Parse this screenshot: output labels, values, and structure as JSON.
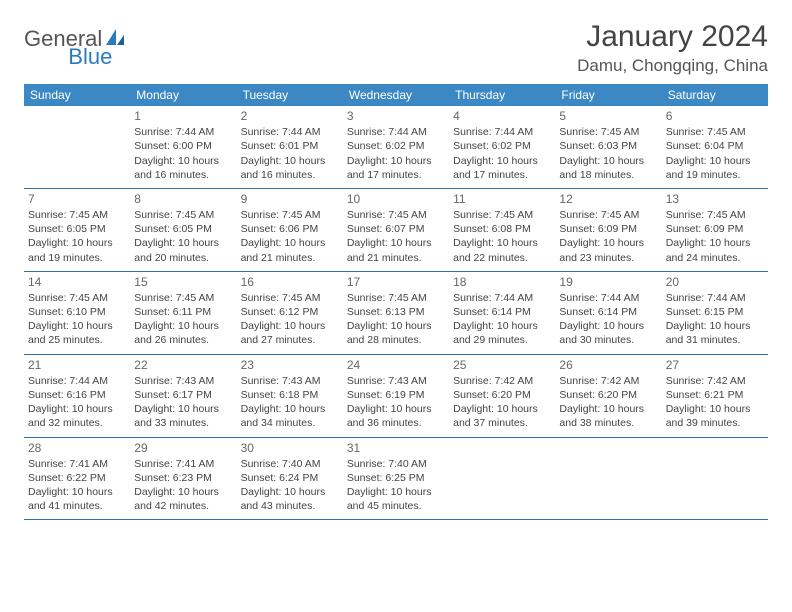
{
  "logo": {
    "text1": "General",
    "text2": "Blue"
  },
  "title": "January 2024",
  "location": "Damu, Chongqing, China",
  "weekdays": [
    "Sunday",
    "Monday",
    "Tuesday",
    "Wednesday",
    "Thursday",
    "Friday",
    "Saturday"
  ],
  "colors": {
    "header_bg": "#3b88c4",
    "header_text": "#ffffff",
    "border": "#2f6fa3",
    "body_text": "#444444",
    "daynum": "#666666",
    "logo_gray": "#555555",
    "logo_blue": "#2b7bbf"
  },
  "days": [
    {
      "n": "",
      "sr": "",
      "ss": "",
      "d1": "",
      "d2": ""
    },
    {
      "n": "1",
      "sr": "Sunrise: 7:44 AM",
      "ss": "Sunset: 6:00 PM",
      "d1": "Daylight: 10 hours",
      "d2": "and 16 minutes."
    },
    {
      "n": "2",
      "sr": "Sunrise: 7:44 AM",
      "ss": "Sunset: 6:01 PM",
      "d1": "Daylight: 10 hours",
      "d2": "and 16 minutes."
    },
    {
      "n": "3",
      "sr": "Sunrise: 7:44 AM",
      "ss": "Sunset: 6:02 PM",
      "d1": "Daylight: 10 hours",
      "d2": "and 17 minutes."
    },
    {
      "n": "4",
      "sr": "Sunrise: 7:44 AM",
      "ss": "Sunset: 6:02 PM",
      "d1": "Daylight: 10 hours",
      "d2": "and 17 minutes."
    },
    {
      "n": "5",
      "sr": "Sunrise: 7:45 AM",
      "ss": "Sunset: 6:03 PM",
      "d1": "Daylight: 10 hours",
      "d2": "and 18 minutes."
    },
    {
      "n": "6",
      "sr": "Sunrise: 7:45 AM",
      "ss": "Sunset: 6:04 PM",
      "d1": "Daylight: 10 hours",
      "d2": "and 19 minutes."
    },
    {
      "n": "7",
      "sr": "Sunrise: 7:45 AM",
      "ss": "Sunset: 6:05 PM",
      "d1": "Daylight: 10 hours",
      "d2": "and 19 minutes."
    },
    {
      "n": "8",
      "sr": "Sunrise: 7:45 AM",
      "ss": "Sunset: 6:05 PM",
      "d1": "Daylight: 10 hours",
      "d2": "and 20 minutes."
    },
    {
      "n": "9",
      "sr": "Sunrise: 7:45 AM",
      "ss": "Sunset: 6:06 PM",
      "d1": "Daylight: 10 hours",
      "d2": "and 21 minutes."
    },
    {
      "n": "10",
      "sr": "Sunrise: 7:45 AM",
      "ss": "Sunset: 6:07 PM",
      "d1": "Daylight: 10 hours",
      "d2": "and 21 minutes."
    },
    {
      "n": "11",
      "sr": "Sunrise: 7:45 AM",
      "ss": "Sunset: 6:08 PM",
      "d1": "Daylight: 10 hours",
      "d2": "and 22 minutes."
    },
    {
      "n": "12",
      "sr": "Sunrise: 7:45 AM",
      "ss": "Sunset: 6:09 PM",
      "d1": "Daylight: 10 hours",
      "d2": "and 23 minutes."
    },
    {
      "n": "13",
      "sr": "Sunrise: 7:45 AM",
      "ss": "Sunset: 6:09 PM",
      "d1": "Daylight: 10 hours",
      "d2": "and 24 minutes."
    },
    {
      "n": "14",
      "sr": "Sunrise: 7:45 AM",
      "ss": "Sunset: 6:10 PM",
      "d1": "Daylight: 10 hours",
      "d2": "and 25 minutes."
    },
    {
      "n": "15",
      "sr": "Sunrise: 7:45 AM",
      "ss": "Sunset: 6:11 PM",
      "d1": "Daylight: 10 hours",
      "d2": "and 26 minutes."
    },
    {
      "n": "16",
      "sr": "Sunrise: 7:45 AM",
      "ss": "Sunset: 6:12 PM",
      "d1": "Daylight: 10 hours",
      "d2": "and 27 minutes."
    },
    {
      "n": "17",
      "sr": "Sunrise: 7:45 AM",
      "ss": "Sunset: 6:13 PM",
      "d1": "Daylight: 10 hours",
      "d2": "and 28 minutes."
    },
    {
      "n": "18",
      "sr": "Sunrise: 7:44 AM",
      "ss": "Sunset: 6:14 PM",
      "d1": "Daylight: 10 hours",
      "d2": "and 29 minutes."
    },
    {
      "n": "19",
      "sr": "Sunrise: 7:44 AM",
      "ss": "Sunset: 6:14 PM",
      "d1": "Daylight: 10 hours",
      "d2": "and 30 minutes."
    },
    {
      "n": "20",
      "sr": "Sunrise: 7:44 AM",
      "ss": "Sunset: 6:15 PM",
      "d1": "Daylight: 10 hours",
      "d2": "and 31 minutes."
    },
    {
      "n": "21",
      "sr": "Sunrise: 7:44 AM",
      "ss": "Sunset: 6:16 PM",
      "d1": "Daylight: 10 hours",
      "d2": "and 32 minutes."
    },
    {
      "n": "22",
      "sr": "Sunrise: 7:43 AM",
      "ss": "Sunset: 6:17 PM",
      "d1": "Daylight: 10 hours",
      "d2": "and 33 minutes."
    },
    {
      "n": "23",
      "sr": "Sunrise: 7:43 AM",
      "ss": "Sunset: 6:18 PM",
      "d1": "Daylight: 10 hours",
      "d2": "and 34 minutes."
    },
    {
      "n": "24",
      "sr": "Sunrise: 7:43 AM",
      "ss": "Sunset: 6:19 PM",
      "d1": "Daylight: 10 hours",
      "d2": "and 36 minutes."
    },
    {
      "n": "25",
      "sr": "Sunrise: 7:42 AM",
      "ss": "Sunset: 6:20 PM",
      "d1": "Daylight: 10 hours",
      "d2": "and 37 minutes."
    },
    {
      "n": "26",
      "sr": "Sunrise: 7:42 AM",
      "ss": "Sunset: 6:20 PM",
      "d1": "Daylight: 10 hours",
      "d2": "and 38 minutes."
    },
    {
      "n": "27",
      "sr": "Sunrise: 7:42 AM",
      "ss": "Sunset: 6:21 PM",
      "d1": "Daylight: 10 hours",
      "d2": "and 39 minutes."
    },
    {
      "n": "28",
      "sr": "Sunrise: 7:41 AM",
      "ss": "Sunset: 6:22 PM",
      "d1": "Daylight: 10 hours",
      "d2": "and 41 minutes."
    },
    {
      "n": "29",
      "sr": "Sunrise: 7:41 AM",
      "ss": "Sunset: 6:23 PM",
      "d1": "Daylight: 10 hours",
      "d2": "and 42 minutes."
    },
    {
      "n": "30",
      "sr": "Sunrise: 7:40 AM",
      "ss": "Sunset: 6:24 PM",
      "d1": "Daylight: 10 hours",
      "d2": "and 43 minutes."
    },
    {
      "n": "31",
      "sr": "Sunrise: 7:40 AM",
      "ss": "Sunset: 6:25 PM",
      "d1": "Daylight: 10 hours",
      "d2": "and 45 minutes."
    },
    {
      "n": "",
      "sr": "",
      "ss": "",
      "d1": "",
      "d2": ""
    },
    {
      "n": "",
      "sr": "",
      "ss": "",
      "d1": "",
      "d2": ""
    },
    {
      "n": "",
      "sr": "",
      "ss": "",
      "d1": "",
      "d2": ""
    }
  ]
}
